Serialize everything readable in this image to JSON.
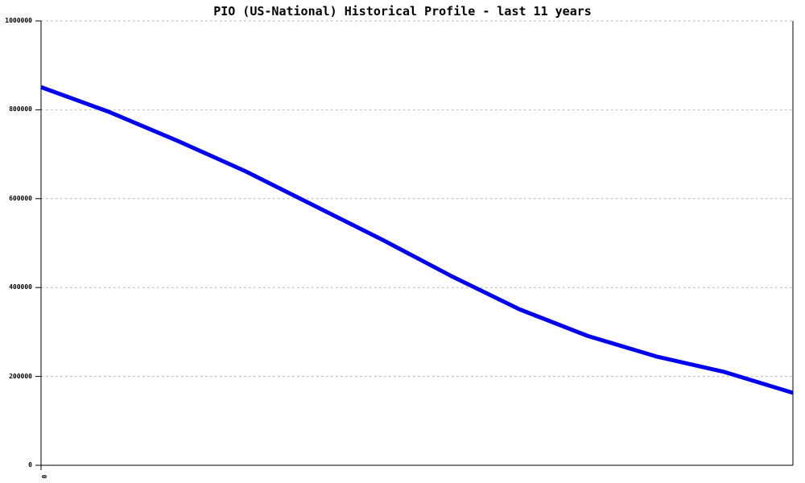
{
  "chart_data": {
    "type": "line",
    "title": "PIO (US-National) Historical Profile - last 11 years",
    "xlabel": "",
    "ylabel": "",
    "legend_position": "none",
    "grid": "horizontal-dotted",
    "x": [
      0,
      1,
      2,
      3,
      4,
      5,
      6,
      7,
      8,
      9,
      10,
      11
    ],
    "values": [
      851000,
      795000,
      730000,
      661000,
      584000,
      507000,
      426000,
      351000,
      291000,
      245000,
      210000,
      163000
    ],
    "ylim": [
      0,
      1000000
    ],
    "yticks": [
      {
        "value": 0,
        "label": "0"
      },
      {
        "value": 200000,
        "label": "200000"
      },
      {
        "value": 400000,
        "label": "400000"
      },
      {
        "value": 600000,
        "label": "600000"
      },
      {
        "value": 800000,
        "label": "800000"
      },
      {
        "value": 1000000,
        "label": "1000000"
      }
    ],
    "x_visible_tick_label": "0",
    "colors": {
      "line": "#0000ee",
      "grid": "#b0b0b0",
      "axis": "#000000",
      "text": "#000000",
      "background": "#ffffff"
    },
    "line_width": 5
  }
}
